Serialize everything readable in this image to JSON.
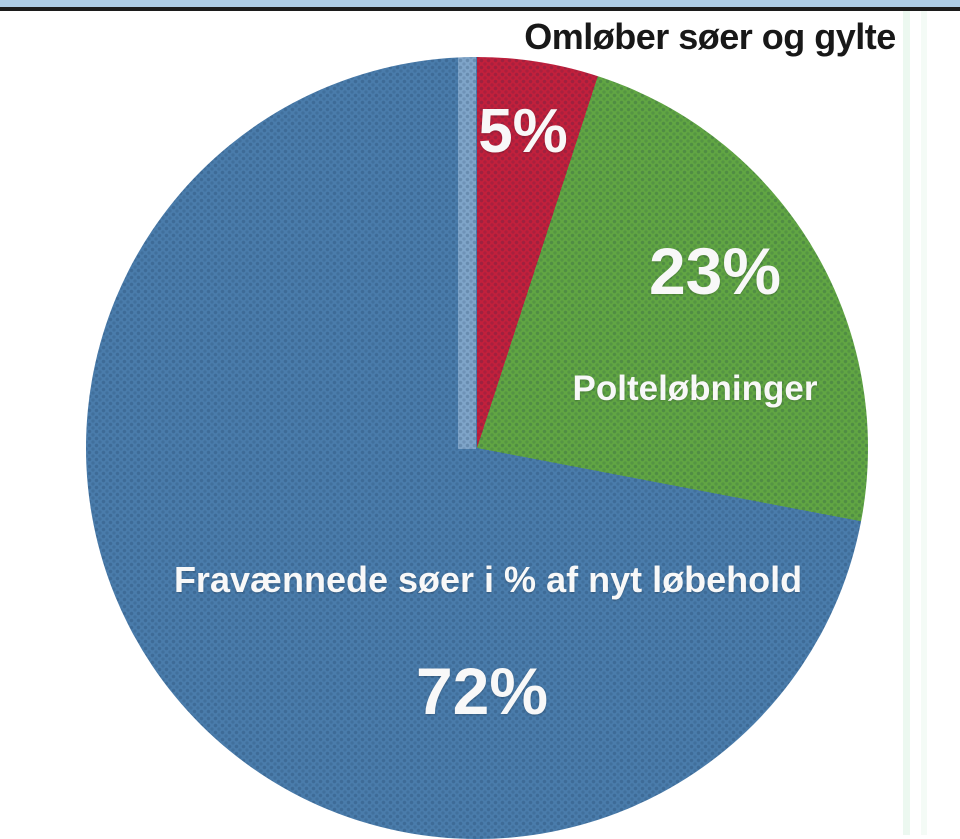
{
  "page": {
    "background_color": "#ffffff",
    "top_accent_bar_color": "#aecde6",
    "top_divider_line_color": "#1c1c1c"
  },
  "chart_data": {
    "type": "pie",
    "title": "Omløber søer og gylte",
    "start_angle_deg": 0,
    "direction": "clockwise",
    "legend": "none",
    "slices": [
      {
        "label": "Omløber søer og gylte",
        "value": 5,
        "display": "5%",
        "color": "#c2203c",
        "label_position": "inside-top"
      },
      {
        "label": "Polteløbninger",
        "value": 23,
        "display": "23%",
        "color": "#61a643",
        "label_position": "inside-right"
      },
      {
        "label": "Fravænnede søer i % af nyt løbehold",
        "value": 72,
        "display": "72%",
        "color": "#4a7cab",
        "label_position": "inside-bottom"
      }
    ]
  }
}
